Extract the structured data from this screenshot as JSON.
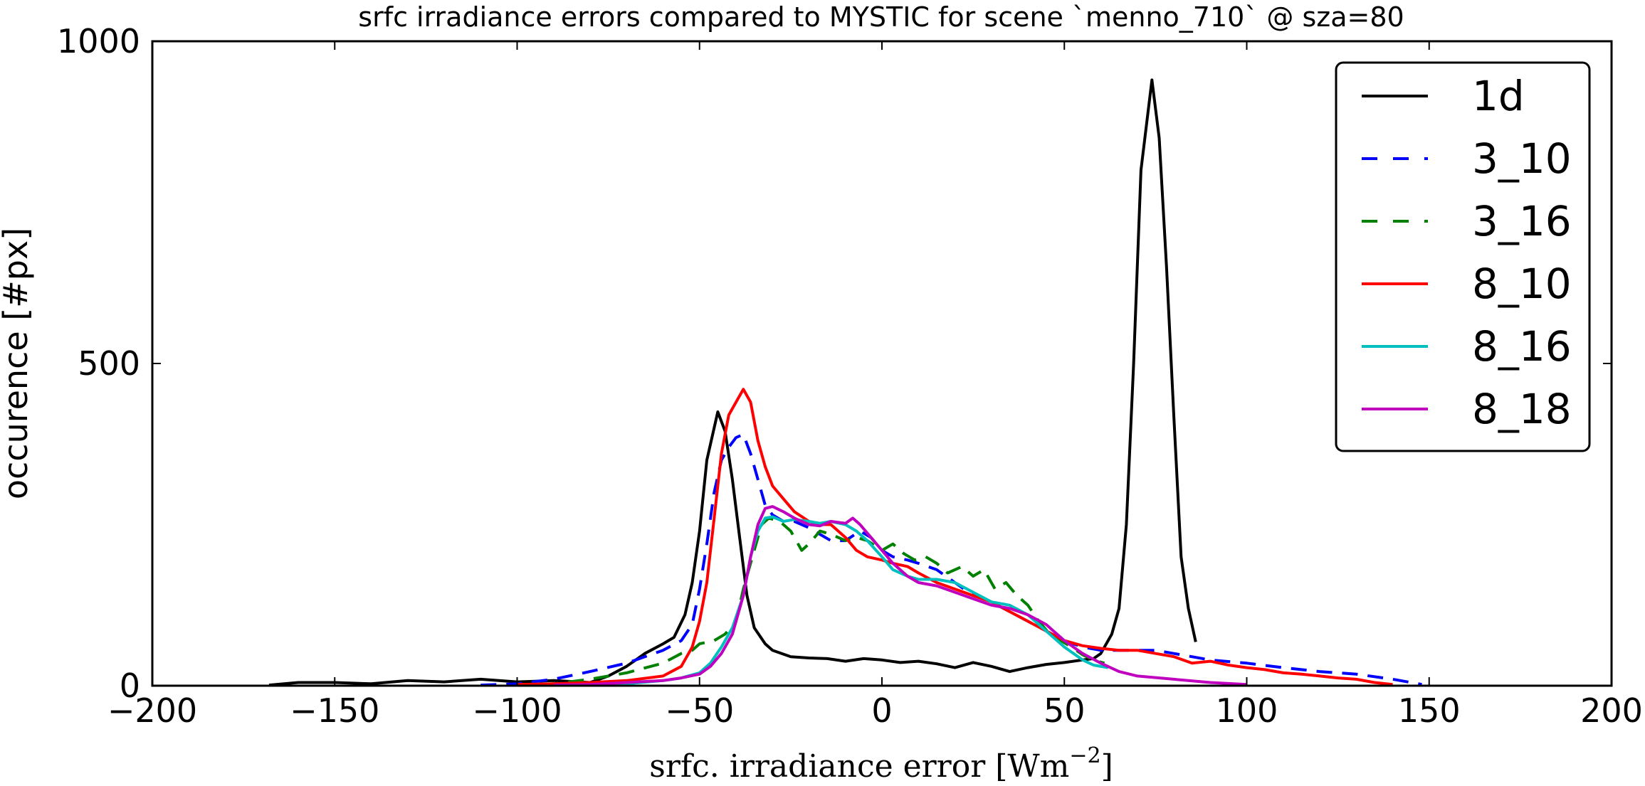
{
  "chart_data": {
    "type": "line",
    "title": "srfc irradiance errors compared to MYSTIC for scene `menno_710` @ sza=80",
    "xlabel": "srfc.  irradiance error [Wm",
    "xlabel_exponent": "−2",
    "xlabel_suffix": "]",
    "ylabel": "occurence [#px]",
    "xlim": [
      -200,
      200
    ],
    "ylim": [
      0,
      1000
    ],
    "xticks": [
      -200,
      -150,
      -100,
      -50,
      0,
      50,
      100,
      150,
      200
    ],
    "xtick_labels": [
      "−200",
      "−150",
      "−100",
      "−50",
      "0",
      "50",
      "100",
      "150",
      "200"
    ],
    "yticks": [
      0,
      500,
      1000
    ],
    "ytick_labels": [
      "0",
      "500",
      "1000"
    ],
    "grid": false,
    "legend_position": "top-right",
    "series": [
      {
        "name": "1d",
        "color": "#000000",
        "dash": "solid",
        "points": [
          [
            -168,
            1
          ],
          [
            -160,
            5
          ],
          [
            -150,
            5
          ],
          [
            -140,
            3
          ],
          [
            -130,
            8
          ],
          [
            -120,
            6
          ],
          [
            -110,
            10
          ],
          [
            -100,
            6
          ],
          [
            -90,
            8
          ],
          [
            -80,
            5
          ],
          [
            -75,
            15
          ],
          [
            -70,
            30
          ],
          [
            -65,
            50
          ],
          [
            -60,
            65
          ],
          [
            -57,
            75
          ],
          [
            -54,
            110
          ],
          [
            -52,
            160
          ],
          [
            -50,
            240
          ],
          [
            -48,
            350
          ],
          [
            -45,
            425
          ],
          [
            -43,
            395
          ],
          [
            -41,
            320
          ],
          [
            -39,
            230
          ],
          [
            -37,
            140
          ],
          [
            -35,
            90
          ],
          [
            -32,
            65
          ],
          [
            -30,
            55
          ],
          [
            -25,
            45
          ],
          [
            -20,
            43
          ],
          [
            -15,
            42
          ],
          [
            -10,
            38
          ],
          [
            -5,
            42
          ],
          [
            0,
            40
          ],
          [
            5,
            36
          ],
          [
            10,
            38
          ],
          [
            15,
            34
          ],
          [
            20,
            28
          ],
          [
            25,
            36
          ],
          [
            30,
            30
          ],
          [
            35,
            22
          ],
          [
            40,
            28
          ],
          [
            45,
            33
          ],
          [
            50,
            36
          ],
          [
            55,
            40
          ],
          [
            58,
            42
          ],
          [
            60,
            50
          ],
          [
            63,
            80
          ],
          [
            65,
            120
          ],
          [
            67,
            250
          ],
          [
            69,
            500
          ],
          [
            71,
            800
          ],
          [
            74,
            940
          ],
          [
            76,
            850
          ],
          [
            78,
            650
          ],
          [
            80,
            420
          ],
          [
            82,
            200
          ],
          [
            84,
            120
          ],
          [
            86,
            68
          ]
        ]
      },
      {
        "name": "3_10",
        "color": "#0000ff",
        "dash": "dashed",
        "points": [
          [
            -110,
            1
          ],
          [
            -100,
            3
          ],
          [
            -90,
            10
          ],
          [
            -80,
            22
          ],
          [
            -70,
            35
          ],
          [
            -60,
            55
          ],
          [
            -55,
            70
          ],
          [
            -52,
            95
          ],
          [
            -50,
            150
          ],
          [
            -48,
            220
          ],
          [
            -46,
            300
          ],
          [
            -44,
            350
          ],
          [
            -42,
            370
          ],
          [
            -40,
            385
          ],
          [
            -38,
            390
          ],
          [
            -36,
            360
          ],
          [
            -34,
            320
          ],
          [
            -32,
            280
          ],
          [
            -30,
            265
          ],
          [
            -27,
            255
          ],
          [
            -24,
            255
          ],
          [
            -20,
            245
          ],
          [
            -17,
            235
          ],
          [
            -14,
            225
          ],
          [
            -10,
            225
          ],
          [
            -6,
            240
          ],
          [
            -3,
            230
          ],
          [
            0,
            210
          ],
          [
            3,
            200
          ],
          [
            7,
            195
          ],
          [
            10,
            190
          ],
          [
            15,
            180
          ],
          [
            20,
            160
          ],
          [
            25,
            140
          ],
          [
            30,
            130
          ],
          [
            35,
            115
          ],
          [
            40,
            100
          ],
          [
            45,
            85
          ],
          [
            50,
            70
          ],
          [
            55,
            60
          ],
          [
            60,
            55
          ],
          [
            65,
            55
          ],
          [
            70,
            55
          ],
          [
            75,
            55
          ],
          [
            80,
            50
          ],
          [
            90,
            40
          ],
          [
            100,
            35
          ],
          [
            110,
            28
          ],
          [
            120,
            22
          ],
          [
            130,
            18
          ],
          [
            140,
            10
          ],
          [
            148,
            2
          ]
        ]
      },
      {
        "name": "3_16",
        "color": "#008000",
        "dash": "dashed",
        "points": [
          [
            -100,
            1
          ],
          [
            -90,
            3
          ],
          [
            -80,
            10
          ],
          [
            -70,
            20
          ],
          [
            -60,
            35
          ],
          [
            -55,
            50
          ],
          [
            -52,
            55
          ],
          [
            -50,
            65
          ],
          [
            -46,
            70
          ],
          [
            -43,
            80
          ],
          [
            -40,
            100
          ],
          [
            -38,
            150
          ],
          [
            -35,
            210
          ],
          [
            -33,
            250
          ],
          [
            -31,
            260
          ],
          [
            -28,
            255
          ],
          [
            -25,
            240
          ],
          [
            -22,
            210
          ],
          [
            -20,
            220
          ],
          [
            -17,
            240
          ],
          [
            -14,
            235
          ],
          [
            -10,
            225
          ],
          [
            -7,
            230
          ],
          [
            -4,
            225
          ],
          [
            0,
            210
          ],
          [
            3,
            220
          ],
          [
            6,
            205
          ],
          [
            9,
            195
          ],
          [
            12,
            200
          ],
          [
            15,
            190
          ],
          [
            18,
            175
          ],
          [
            22,
            185
          ],
          [
            25,
            170
          ],
          [
            28,
            180
          ],
          [
            31,
            150
          ],
          [
            34,
            160
          ],
          [
            37,
            140
          ],
          [
            40,
            125
          ],
          [
            43,
            100
          ],
          [
            46,
            80
          ],
          [
            49,
            70
          ],
          [
            52,
            60
          ],
          [
            55,
            48
          ],
          [
            58,
            40
          ],
          [
            61,
            35
          ]
        ]
      },
      {
        "name": "8_10",
        "color": "#ff0000",
        "dash": "solid",
        "points": [
          [
            -100,
            2
          ],
          [
            -90,
            3
          ],
          [
            -80,
            5
          ],
          [
            -70,
            8
          ],
          [
            -60,
            15
          ],
          [
            -55,
            30
          ],
          [
            -52,
            60
          ],
          [
            -50,
            100
          ],
          [
            -48,
            160
          ],
          [
            -46,
            260
          ],
          [
            -44,
            360
          ],
          [
            -42,
            420
          ],
          [
            -40,
            440
          ],
          [
            -38,
            460
          ],
          [
            -36,
            440
          ],
          [
            -34,
            380
          ],
          [
            -32,
            340
          ],
          [
            -30,
            310
          ],
          [
            -27,
            290
          ],
          [
            -24,
            270
          ],
          [
            -20,
            255
          ],
          [
            -17,
            250
          ],
          [
            -14,
            250
          ],
          [
            -10,
            230
          ],
          [
            -7,
            210
          ],
          [
            -4,
            200
          ],
          [
            0,
            195
          ],
          [
            3,
            190
          ],
          [
            7,
            185
          ],
          [
            10,
            175
          ],
          [
            15,
            160
          ],
          [
            20,
            150
          ],
          [
            25,
            140
          ],
          [
            30,
            130
          ],
          [
            35,
            115
          ],
          [
            40,
            100
          ],
          [
            45,
            85
          ],
          [
            50,
            70
          ],
          [
            55,
            62
          ],
          [
            60,
            58
          ],
          [
            65,
            55
          ],
          [
            70,
            55
          ],
          [
            75,
            50
          ],
          [
            80,
            45
          ],
          [
            85,
            35
          ],
          [
            90,
            38
          ],
          [
            95,
            32
          ],
          [
            100,
            28
          ],
          [
            105,
            25
          ],
          [
            110,
            20
          ],
          [
            115,
            18
          ],
          [
            120,
            15
          ],
          [
            125,
            12
          ],
          [
            130,
            10
          ],
          [
            135,
            5
          ],
          [
            140,
            2
          ]
        ]
      },
      {
        "name": "8_16",
        "color": "#00bfbf",
        "dash": "solid",
        "points": [
          [
            -80,
            1
          ],
          [
            -70,
            3
          ],
          [
            -60,
            8
          ],
          [
            -55,
            12
          ],
          [
            -50,
            20
          ],
          [
            -47,
            35
          ],
          [
            -44,
            60
          ],
          [
            -41,
            90
          ],
          [
            -38,
            140
          ],
          [
            -36,
            200
          ],
          [
            -34,
            240
          ],
          [
            -32,
            260
          ],
          [
            -30,
            262
          ],
          [
            -27,
            255
          ],
          [
            -24,
            258
          ],
          [
            -20,
            255
          ],
          [
            -17,
            252
          ],
          [
            -14,
            255
          ],
          [
            -10,
            250
          ],
          [
            -7,
            240
          ],
          [
            -4,
            225
          ],
          [
            0,
            200
          ],
          [
            3,
            180
          ],
          [
            7,
            170
          ],
          [
            10,
            165
          ],
          [
            15,
            165
          ],
          [
            20,
            160
          ],
          [
            25,
            145
          ],
          [
            30,
            130
          ],
          [
            35,
            125
          ],
          [
            40,
            110
          ],
          [
            45,
            85
          ],
          [
            50,
            60
          ],
          [
            55,
            40
          ],
          [
            58,
            32
          ],
          [
            62,
            28
          ]
        ]
      },
      {
        "name": "8_18",
        "color": "#bf00bf",
        "dash": "solid",
        "points": [
          [
            -90,
            1
          ],
          [
            -80,
            2
          ],
          [
            -70,
            5
          ],
          [
            -60,
            8
          ],
          [
            -55,
            12
          ],
          [
            -50,
            18
          ],
          [
            -47,
            30
          ],
          [
            -44,
            50
          ],
          [
            -41,
            80
          ],
          [
            -38,
            140
          ],
          [
            -36,
            200
          ],
          [
            -34,
            250
          ],
          [
            -32,
            275
          ],
          [
            -30,
            278
          ],
          [
            -27,
            270
          ],
          [
            -24,
            260
          ],
          [
            -20,
            250
          ],
          [
            -17,
            248
          ],
          [
            -14,
            255
          ],
          [
            -10,
            252
          ],
          [
            -8,
            260
          ],
          [
            -6,
            250
          ],
          [
            -3,
            230
          ],
          [
            0,
            210
          ],
          [
            3,
            190
          ],
          [
            7,
            170
          ],
          [
            10,
            160
          ],
          [
            15,
            155
          ],
          [
            20,
            145
          ],
          [
            25,
            135
          ],
          [
            30,
            125
          ],
          [
            35,
            120
          ],
          [
            40,
            110
          ],
          [
            45,
            95
          ],
          [
            50,
            70
          ],
          [
            55,
            50
          ],
          [
            60,
            35
          ],
          [
            65,
            22
          ],
          [
            70,
            15
          ],
          [
            80,
            10
          ],
          [
            90,
            5
          ],
          [
            100,
            2
          ]
        ]
      }
    ]
  }
}
